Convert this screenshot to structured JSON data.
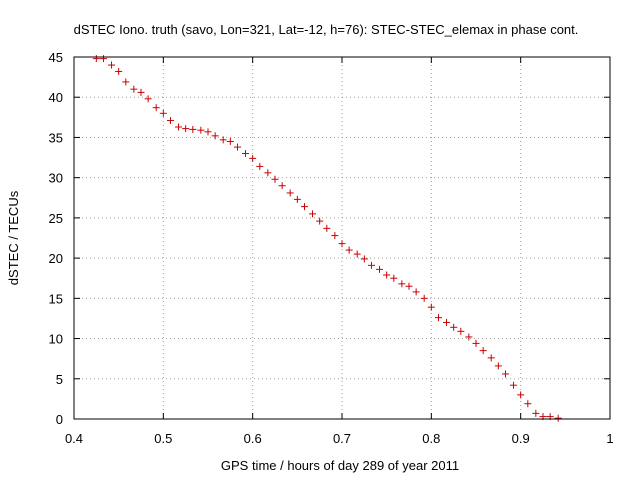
{
  "chart_data": {
    "type": "scatter",
    "title": "dSTEC Iono. truth (savo, Lon=321, Lat=-12, h=76): STEC-STEC_elemax in phase cont.",
    "xlabel": "GPS time / hours of day 289 of year 2011",
    "ylabel": "dSTEC  / TECUs",
    "xlim": [
      0.4,
      1.0
    ],
    "ylim": [
      0,
      45
    ],
    "x_ticks": [
      0.4,
      0.5,
      0.6,
      0.7,
      0.8,
      0.9,
      1.0
    ],
    "x_tick_labels": [
      "0.4",
      "0.5",
      "0.6",
      "0.7",
      "0.8",
      "0.9",
      "1"
    ],
    "y_ticks": [
      0,
      5,
      10,
      15,
      20,
      25,
      30,
      35,
      40,
      45
    ],
    "y_tick_labels": [
      "0",
      "5",
      "10",
      "15",
      "20",
      "25",
      "30",
      "35",
      "40",
      "45"
    ],
    "grid": true,
    "grid_style": "dotted",
    "marker": "+",
    "series": [
      {
        "color": "#cc0000",
        "x": [
          0.425,
          0.433,
          0.442,
          0.45,
          0.458,
          0.467,
          0.475,
          0.483,
          0.492,
          0.5,
          0.508,
          0.517,
          0.525,
          0.533,
          0.542,
          0.55,
          0.558,
          0.567,
          0.575,
          0.583,
          0.592,
          0.6,
          0.608,
          0.617,
          0.625,
          0.633,
          0.642,
          0.65,
          0.658,
          0.667,
          0.675,
          0.683,
          0.692,
          0.7,
          0.708,
          0.717,
          0.725,
          0.733,
          0.742,
          0.75,
          0.758,
          0.767,
          0.775,
          0.783,
          0.792,
          0.8,
          0.808,
          0.817,
          0.825,
          0.833,
          0.842,
          0.85,
          0.858,
          0.867,
          0.875,
          0.883,
          0.892,
          0.9,
          0.908,
          0.917,
          0.925,
          0.933,
          0.942
        ],
        "y": [
          44.8,
          44.8,
          44.0,
          43.2,
          41.9,
          41.0,
          40.6,
          39.8,
          38.7,
          38.0,
          37.1,
          36.3,
          36.1,
          36.0,
          35.9,
          35.7,
          35.2,
          34.7,
          34.5,
          33.8,
          33.0,
          32.4,
          31.4,
          30.6,
          29.8,
          29.0,
          28.1,
          27.3,
          26.4,
          25.5,
          24.6,
          23.7,
          22.8,
          21.8,
          21.0,
          20.5,
          19.9,
          19.1,
          18.6,
          17.9,
          17.5,
          16.8,
          16.5,
          15.8,
          15.0,
          13.9,
          12.6,
          12.0,
          11.4,
          10.9,
          10.2,
          9.4,
          8.5,
          7.6,
          6.6,
          5.6,
          4.2,
          3.0,
          1.9,
          0.7,
          0.3,
          0.3,
          0.1
        ]
      }
    ]
  }
}
